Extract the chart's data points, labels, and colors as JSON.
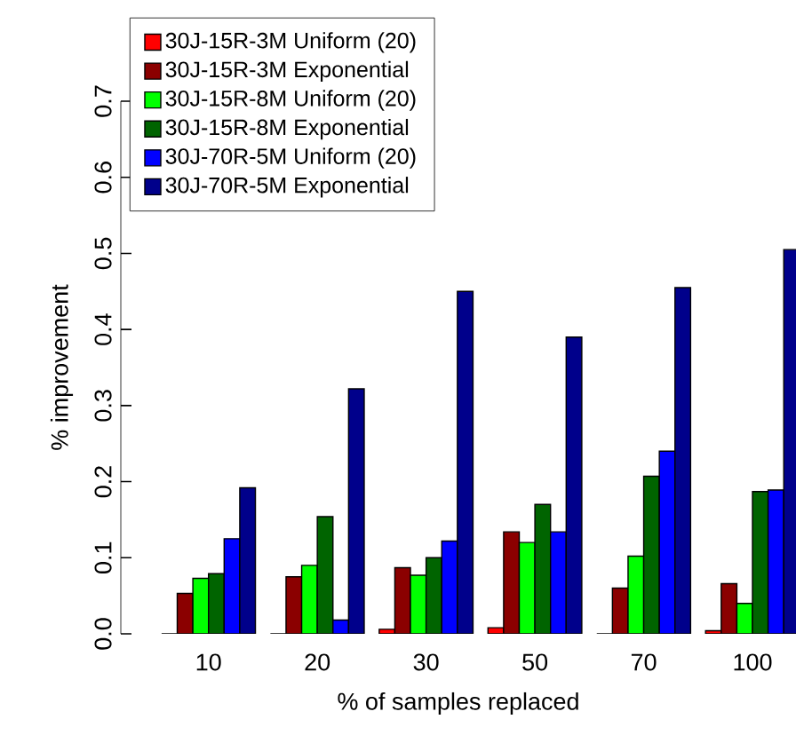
{
  "chart_data": {
    "type": "bar",
    "xlabel": "% of samples replaced",
    "ylabel": "% improvement",
    "categories": [
      "10",
      "20",
      "30",
      "50",
      "70",
      "100"
    ],
    "series": [
      {
        "name": "30J-15R-3M Uniform (20)",
        "color": "#ff0000",
        "values": [
          0,
          0,
          0.006,
          0.008,
          0,
          0.004
        ]
      },
      {
        "name": "30J-15R-3M Exponential",
        "color": "#8b0000",
        "values": [
          0.053,
          0.075,
          0.087,
          0.134,
          0.06,
          0.066
        ]
      },
      {
        "name": "30J-15R-8M Uniform (20)",
        "color": "#00ff00",
        "values": [
          0.073,
          0.09,
          0.077,
          0.12,
          0.102,
          0.04
        ]
      },
      {
        "name": "30J-15R-8M Exponential",
        "color": "#006400",
        "values": [
          0.079,
          0.154,
          0.1,
          0.17,
          0.207,
          0.187
        ]
      },
      {
        "name": "30J-70R-5M Uniform (20)",
        "color": "#0000ff",
        "values": [
          0.125,
          0.018,
          0.122,
          0.134,
          0.24,
          0.189
        ]
      },
      {
        "name": "30J-70R-5M Exponential",
        "color": "#00008b",
        "values": [
          0.192,
          0.322,
          0.45,
          0.39,
          0.455,
          0.505
        ]
      }
    ],
    "ylim": [
      0,
      0.7
    ],
    "yticks": [
      {
        "value": 0,
        "label": "0.0"
      },
      0.1,
      0.2,
      0.3,
      0.4,
      0.5,
      0.6,
      0.7
    ],
    "legend": "top left",
    "grid": false
  }
}
